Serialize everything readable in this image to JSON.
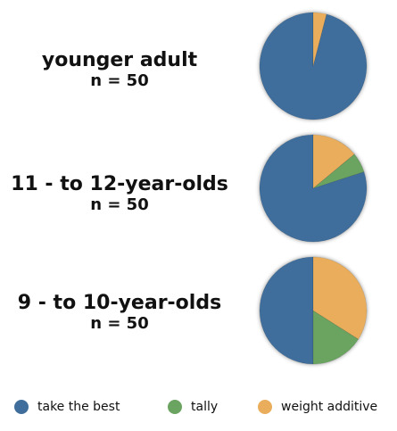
{
  "chart_data": {
    "type": "pie",
    "groups": [
      {
        "label": "younger adult",
        "n_label": "n = 50",
        "values": [
          48,
          0,
          2
        ]
      },
      {
        "label": "11 - to 12-year-olds",
        "n_label": "n = 50",
        "values": [
          40,
          3,
          7
        ]
      },
      {
        "label": "9 - to 10-year-olds",
        "n_label": "n = 50",
        "values": [
          25,
          8,
          17
        ]
      }
    ],
    "categories": [
      "take the best",
      "tally",
      "weight additive"
    ],
    "colors": [
      "#3f6e9c",
      "#6aa460",
      "#e9ad5c"
    ],
    "legend_position": "bottom"
  }
}
